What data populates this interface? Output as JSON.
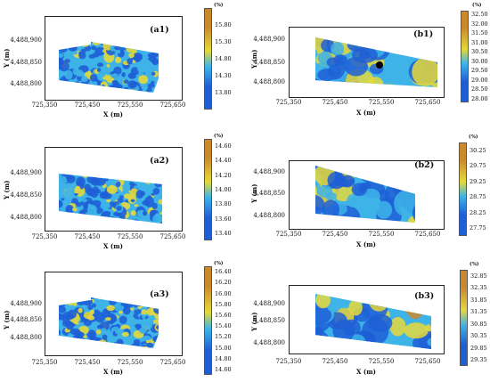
{
  "figure": {
    "x_axis_label": "X (m)",
    "y_axis_label": "Y (m)",
    "unit_label": "(%)"
  },
  "chart_data": [
    {
      "type": "heatmap",
      "panel_label": "(a1)",
      "xlabel": "X (m)",
      "ylabel": "Y (m)",
      "x_ticks": [
        "725,350",
        "725,450",
        "725,550",
        "725,650"
      ],
      "y_ticks": [
        "4,488,900",
        "4,488,850",
        "4,488,800"
      ],
      "colorbar_unit": "(%)",
      "colorbar_ticks": [
        "15.80",
        "15.30",
        "14.80",
        "14.30",
        "13.80"
      ],
      "colorbar_range": [
        13.3,
        16.3
      ],
      "colors": [
        "#1f5fd6",
        "#3db3e8",
        "#e6d83a",
        "#c98a2e"
      ]
    },
    {
      "type": "heatmap",
      "panel_label": "(a2)",
      "xlabel": "X (m)",
      "ylabel": "Y (m)",
      "x_ticks": [
        "725,350",
        "725,450",
        "725,550",
        "725,650"
      ],
      "y_ticks": [
        "4,488,900",
        "4,488,850",
        "4,488,800"
      ],
      "colorbar_unit": "(%)",
      "colorbar_ticks": [
        "14.60",
        "14.40",
        "14.20",
        "14.00",
        "13.80",
        "13.60",
        "13.40"
      ],
      "colorbar_range": [
        13.3,
        14.7
      ],
      "colors": [
        "#1f5fd6",
        "#3db3e8",
        "#e6d83a",
        "#c98a2e"
      ]
    },
    {
      "type": "heatmap",
      "panel_label": "(a3)",
      "xlabel": "X (m)",
      "ylabel": "Y (m)",
      "x_ticks": [
        "725,350",
        "725,450",
        "725,550",
        "725,650"
      ],
      "y_ticks": [
        "4,488,900",
        "4,488,850",
        "4,488,800"
      ],
      "colorbar_unit": "(%)",
      "colorbar_ticks": [
        "16.40",
        "16.20",
        "16.00",
        "15.80",
        "15.60",
        "15.40",
        "15.20",
        "15.00",
        "14.80",
        "14.60"
      ],
      "colorbar_range": [
        14.5,
        16.5
      ],
      "colors": [
        "#1f5fd6",
        "#3db3e8",
        "#e6d83a",
        "#c98a2e"
      ]
    },
    {
      "type": "heatmap",
      "panel_label": "(b1)",
      "xlabel": "X (m)",
      "ylabel": "Y (m)",
      "x_ticks": [
        "725,350",
        "725,450",
        "725,550",
        "725,650"
      ],
      "y_ticks": [
        "4,488,900",
        "4,488,850",
        "4,488,800"
      ],
      "colorbar_unit": "(%)",
      "colorbar_ticks": [
        "32.50",
        "32.00",
        "31.50",
        "31.00",
        "30.50",
        "30.00",
        "29.50",
        "29.00",
        "28.50",
        "28.00"
      ],
      "colorbar_range": [
        27.8,
        32.7
      ],
      "colors": [
        "#1f5fd6",
        "#3db3e8",
        "#e6d83a",
        "#c98a2e"
      ]
    },
    {
      "type": "heatmap",
      "panel_label": "(b2)",
      "xlabel": "X (m)",
      "ylabel": "Y (m)",
      "x_ticks": [
        "725,350",
        "725,450",
        "725,550",
        "725,650"
      ],
      "y_ticks": [
        "4,488,900",
        "4,488,850",
        "4,488,800"
      ],
      "colorbar_unit": "(%)",
      "colorbar_ticks": [
        "30.25",
        "29.75",
        "29.25",
        "28.75",
        "28.25",
        "27.75"
      ],
      "colorbar_range": [
        27.5,
        30.5
      ],
      "colors": [
        "#1f5fd6",
        "#3db3e8",
        "#e6d83a",
        "#c98a2e"
      ]
    },
    {
      "type": "heatmap",
      "panel_label": "(b3)",
      "xlabel": "X (m)",
      "ylabel": "Y (m)",
      "x_ticks": [
        "725,350",
        "725,450",
        "725,550",
        "725,650"
      ],
      "y_ticks": [
        "4,488,900",
        "4,488,850",
        "4,488,800"
      ],
      "colorbar_unit": "(%)",
      "colorbar_ticks": [
        "32.85",
        "32.35",
        "31.85",
        "31.35",
        "30.85",
        "30.35",
        "29.85",
        "29.35"
      ],
      "colorbar_range": [
        29.1,
        33.1
      ],
      "colors": [
        "#1f5fd6",
        "#3db3e8",
        "#e6d83a",
        "#c98a2e"
      ]
    }
  ]
}
